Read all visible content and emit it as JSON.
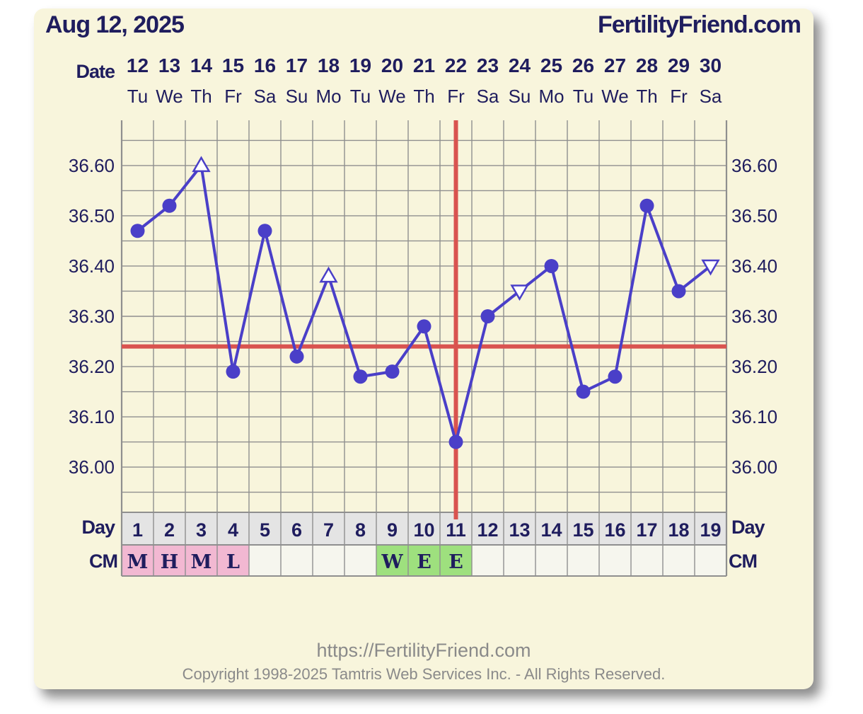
{
  "header": {
    "date": "Aug 12, 2025",
    "site": "FertilityFriend.com",
    "date_label": "Date",
    "day_label": "Day",
    "cm_label": "CM"
  },
  "footer": {
    "url": "https://FertilityFriend.com",
    "copyright": "Copyright 1998-2025 Tamtris Web Services Inc. - All Rights Reserved."
  },
  "chart_data": {
    "type": "line",
    "title": "",
    "dates": [
      "12",
      "13",
      "14",
      "15",
      "16",
      "17",
      "18",
      "19",
      "20",
      "21",
      "22",
      "23",
      "24",
      "25",
      "26",
      "27",
      "28",
      "29",
      "30"
    ],
    "weekdays": [
      "Tu",
      "We",
      "Th",
      "Fr",
      "Sa",
      "Su",
      "Mo",
      "Tu",
      "We",
      "Th",
      "Fr",
      "Sa",
      "Su",
      "Mo",
      "Tu",
      "We",
      "Th",
      "Fr",
      "Sa"
    ],
    "days": [
      1,
      2,
      3,
      4,
      5,
      6,
      7,
      8,
      9,
      10,
      11,
      12,
      13,
      14,
      15,
      16,
      17,
      18,
      19
    ],
    "temperatures": [
      36.47,
      36.52,
      36.6,
      36.19,
      36.47,
      36.22,
      36.38,
      36.18,
      36.19,
      36.28,
      36.05,
      36.3,
      36.35,
      36.4,
      36.15,
      36.18,
      36.52,
      36.35,
      36.4
    ],
    "markers": [
      "circle",
      "circle",
      "triangle-up",
      "circle",
      "circle",
      "circle",
      "triangle-up",
      "circle",
      "circle",
      "circle",
      "circle",
      "circle",
      "triangle-down",
      "circle",
      "circle",
      "circle",
      "circle",
      "circle",
      "triangle-down"
    ],
    "y_ticks": [
      "36.60",
      "36.50",
      "36.40",
      "36.30",
      "36.20",
      "36.10",
      "36.00"
    ],
    "ylim": [
      35.91,
      36.69
    ],
    "coverline": 36.24,
    "ovulation_day": 11,
    "cervical_mucus": [
      "M",
      "H",
      "M",
      "L",
      "",
      "",
      "",
      "",
      "W",
      "E",
      "E",
      "",
      "",
      "",
      "",
      "",
      "",
      "",
      ""
    ],
    "grid": true,
    "colors": {
      "line": "#4a3fc8",
      "marker": "#4a3fc8",
      "coverline": "#d9534f",
      "grid": "#8f8f8f",
      "cm_menstrual": "#f2b8d2",
      "cm_fertile": "#9ee07e",
      "cm_empty": "#f6f6ee",
      "day_cell": "#e4e4e4",
      "text": "#1f1d5e"
    }
  }
}
